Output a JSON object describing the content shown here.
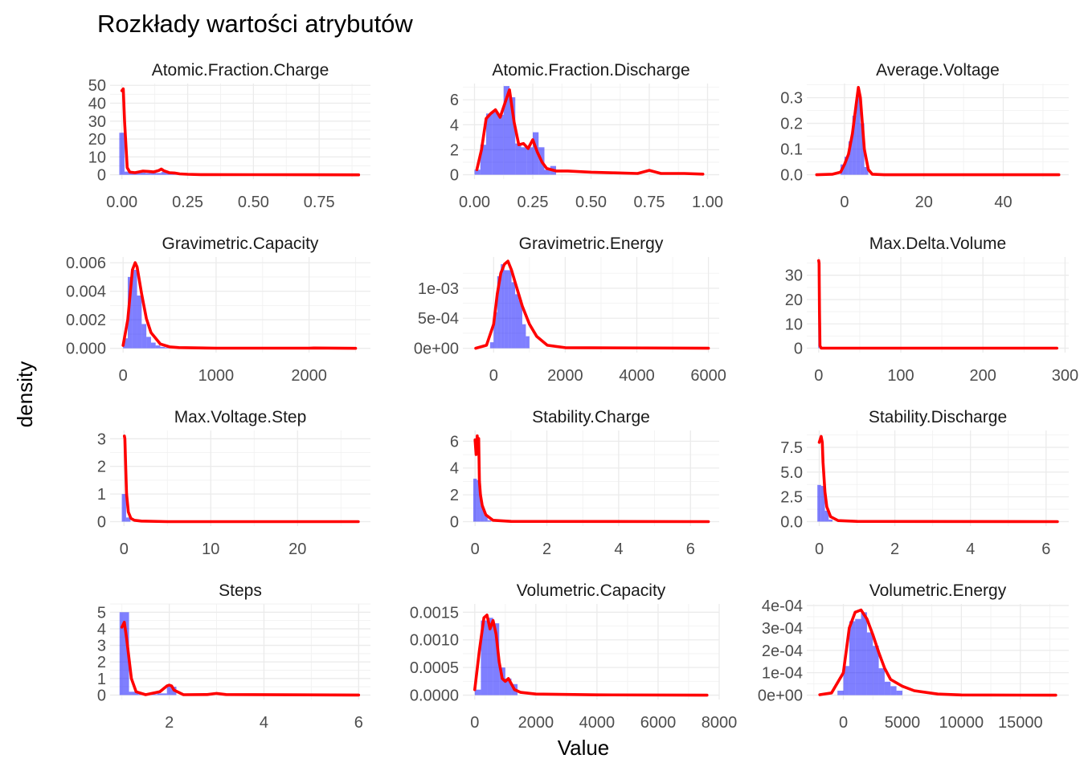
{
  "figure": {
    "title": "Rozkłady wartości atrybutów",
    "xlabel": "Value",
    "ylabel": "density"
  },
  "colors": {
    "histogram": "#0000FF",
    "density": "#FF0000"
  },
  "chart_data": [
    {
      "type": "area",
      "title": "Atomic.Fraction.Charge",
      "xlim": [
        -0.045,
        0.945
      ],
      "ylim": [
        -2.4,
        51
      ],
      "xticks": [
        0,
        0.25,
        0.5,
        0.75
      ],
      "xtick_labels": [
        "0.00",
        "0.25",
        "0.50",
        "0.75"
      ],
      "yticks": [
        0,
        10,
        20,
        30,
        40,
        50
      ],
      "ytick_labels": [
        "0",
        "10",
        "20",
        "30",
        "40",
        "50"
      ],
      "hist": {
        "edges": [
          -0.01,
          0.01,
          0.03,
          0.05,
          0.07,
          0.09,
          0.11,
          0.13,
          0.15,
          0.17,
          0.19,
          0.21,
          0.23,
          0.25
        ],
        "values": [
          23.5,
          1.8,
          1.2,
          1.0,
          1.2,
          1.0,
          1.5,
          1.0,
          1.6,
          0.8,
          0.5,
          0.3,
          0.1
        ]
      },
      "density": {
        "x": [
          0,
          0.005,
          0.01,
          0.02,
          0.03,
          0.05,
          0.08,
          0.1,
          0.12,
          0.14,
          0.15,
          0.16,
          0.18,
          0.2,
          0.22,
          0.25,
          0.3,
          0.5,
          0.7,
          0.9
        ],
        "y": [
          47,
          48,
          30,
          4,
          1.5,
          1.2,
          2.1,
          1.9,
          1.6,
          2.4,
          3.2,
          2.2,
          1.2,
          1.0,
          0.5,
          0.3,
          0.1,
          0.05,
          0.02,
          0
        ]
      }
    },
    {
      "type": "area",
      "title": "Atomic.Fraction.Discharge",
      "xlim": [
        -0.05,
        1.05
      ],
      "ylim": [
        -0.35,
        7.3
      ],
      "xticks": [
        0,
        0.25,
        0.5,
        0.75,
        1.0
      ],
      "xtick_labels": [
        "0.00",
        "0.25",
        "0.50",
        "0.75",
        "1.00"
      ],
      "yticks": [
        0,
        2,
        4,
        6
      ],
      "ytick_labels": [
        "0",
        "2",
        "4",
        "6"
      ],
      "hist": {
        "edges": [
          0,
          0.025,
          0.05,
          0.075,
          0.1,
          0.125,
          0.15,
          0.175,
          0.2,
          0.225,
          0.25,
          0.275,
          0.3,
          0.325,
          0.35
        ],
        "values": [
          0.4,
          2.4,
          4.9,
          5.0,
          4.8,
          7.1,
          6.2,
          2.5,
          2.2,
          2.2,
          3.4,
          2.2,
          0.4,
          0.7
        ]
      },
      "density": {
        "x": [
          0.01,
          0.03,
          0.05,
          0.07,
          0.09,
          0.11,
          0.13,
          0.15,
          0.17,
          0.19,
          0.21,
          0.23,
          0.25,
          0.27,
          0.29,
          0.31,
          0.35,
          0.4,
          0.5,
          0.6,
          0.7,
          0.75,
          0.8,
          0.9,
          0.98
        ],
        "y": [
          0.4,
          2.0,
          4.5,
          4.9,
          5.2,
          4.6,
          5.7,
          6.8,
          4.2,
          2.4,
          2.5,
          2.1,
          2.8,
          1.8,
          1.0,
          0.5,
          0.3,
          0.3,
          0.2,
          0.15,
          0.1,
          0.35,
          0.1,
          0.1,
          0.05
        ]
      }
    },
    {
      "type": "area",
      "title": "Average.Voltage",
      "xlim": [
        -9.5,
        56.5
      ],
      "ylim": [
        -0.017,
        0.355
      ],
      "xticks": [
        0,
        20,
        40
      ],
      "xtick_labels": [
        "0",
        "20",
        "40"
      ],
      "yticks": [
        0,
        0.1,
        0.2,
        0.3
      ],
      "ytick_labels": [
        "0.0",
        "0.1",
        "0.2",
        "0.3"
      ],
      "hist": {
        "edges": [
          -1,
          0,
          1,
          2,
          3,
          4,
          5,
          6
        ],
        "values": [
          0.04,
          0.07,
          0.13,
          0.23,
          0.32,
          0.2,
          0.03
        ]
      },
      "density": {
        "x": [
          -7,
          -3,
          -1,
          0,
          1,
          2,
          3,
          3.5,
          4,
          5,
          6,
          7,
          10,
          20,
          54
        ],
        "y": [
          0,
          0.002,
          0.01,
          0.04,
          0.08,
          0.16,
          0.28,
          0.34,
          0.3,
          0.1,
          0.02,
          0.002,
          0,
          0,
          0
        ]
      }
    },
    {
      "type": "area",
      "title": "Gravimetric.Capacity",
      "xlim": [
        -140,
        2660
      ],
      "ylim": [
        -0.0003,
        0.0064
      ],
      "xticks": [
        0,
        1000,
        2000
      ],
      "xtick_labels": [
        "0",
        "1000",
        "2000"
      ],
      "yticks": [
        0,
        0.002,
        0.004,
        0.006
      ],
      "ytick_labels": [
        "0.000",
        "0.002",
        "0.004",
        "0.006"
      ],
      "hist": {
        "edges": [
          0,
          50,
          100,
          150,
          200,
          250,
          300,
          350,
          400,
          450,
          500
        ],
        "values": [
          0.0007,
          0.005,
          0.0055,
          0.0037,
          0.0017,
          0.0008,
          0.0004,
          0.0002,
          0.0001,
          5e-05
        ]
      },
      "density": {
        "x": [
          0,
          50,
          100,
          130,
          150,
          200,
          250,
          300,
          400,
          500,
          600,
          1000,
          2000,
          2050,
          2500
        ],
        "y": [
          0.0002,
          0.002,
          0.0055,
          0.006,
          0.0057,
          0.0038,
          0.0021,
          0.0011,
          0.0003,
          0.0001,
          5e-05,
          1e-05,
          1e-05,
          2e-05,
          0
        ]
      }
    },
    {
      "type": "area",
      "title": "Gravimetric.Energy",
      "xlim": [
        -860,
        6300
      ],
      "ylim": [
        -7.2e-05,
        0.00152
      ],
      "xticks": [
        0,
        2000,
        4000,
        6000
      ],
      "xtick_labels": [
        "0",
        "2000",
        "4000",
        "6000"
      ],
      "yticks": [
        0,
        0.0005,
        0.001
      ],
      "ytick_labels": [
        "0e+00",
        "5e-04",
        "1e-03"
      ],
      "hist": {
        "edges": [
          -100,
          0,
          100,
          200,
          300,
          400,
          500,
          600,
          700,
          800,
          900,
          1000
        ],
        "values": [
          0.0001,
          0.0006,
          0.0012,
          0.0014,
          0.0013,
          0.0013,
          0.0011,
          0.0009,
          0.0008,
          0.0004,
          0.0002
        ]
      },
      "density": {
        "x": [
          -500,
          -200,
          0,
          100,
          200,
          300,
          400,
          500,
          600,
          700,
          800,
          1000,
          1200,
          1500,
          2000,
          6000
        ],
        "y": [
          0,
          5e-05,
          0.0004,
          0.0009,
          0.00125,
          0.0014,
          0.00145,
          0.0013,
          0.0011,
          0.0009,
          0.0007,
          0.0004,
          0.0002,
          5e-05,
          1e-05,
          0
        ]
      }
    },
    {
      "type": "area",
      "title": "Max.Delta.Volume",
      "xlim": [
        -14.5,
        304.5
      ],
      "ylim": [
        -1.8,
        37.5
      ],
      "xticks": [
        0,
        100,
        200,
        300
      ],
      "xtick_labels": [
        "0",
        "100",
        "200",
        "300"
      ],
      "yticks": [
        0,
        10,
        20,
        30
      ],
      "ytick_labels": [
        "0",
        "10",
        "20",
        "30"
      ],
      "hist": {
        "edges": [
          -0.5,
          0.5,
          1.5
        ],
        "values": [
          35,
          0.2
        ]
      },
      "density": {
        "x": [
          0,
          0.5,
          1,
          1.5,
          3,
          290
        ],
        "y": [
          36,
          35,
          15,
          1,
          0,
          0
        ]
      }
    },
    {
      "type": "area",
      "title": "Max.Voltage.Step",
      "xlim": [
        -1.6,
        28.4
      ],
      "ylim": [
        -0.16,
        3.3
      ],
      "xticks": [
        0,
        10,
        20
      ],
      "xtick_labels": [
        "0",
        "10",
        "20"
      ],
      "yticks": [
        0,
        1,
        2,
        3
      ],
      "ytick_labels": [
        "0",
        "1",
        "2",
        "3"
      ],
      "hist": {
        "edges": [
          -0.25,
          0.25,
          0.75
        ],
        "values": [
          1.0,
          0.15
        ]
      },
      "density": {
        "x": [
          0.05,
          0.1,
          0.2,
          0.3,
          0.5,
          0.8,
          1.2,
          2,
          5,
          27
        ],
        "y": [
          3.1,
          3.0,
          2.0,
          1.0,
          0.35,
          0.12,
          0.05,
          0.02,
          0,
          0
        ]
      }
    },
    {
      "type": "area",
      "title": "Stability.Charge",
      "xlim": [
        -0.34,
        6.8
      ],
      "ylim": [
        -0.33,
        6.8
      ],
      "xticks": [
        0,
        2,
        4,
        6
      ],
      "xtick_labels": [
        "0",
        "2",
        "4",
        "6"
      ],
      "yticks": [
        0,
        2,
        4,
        6
      ],
      "ytick_labels": [
        "0",
        "2",
        "4",
        "6"
      ],
      "hist": {
        "edges": [
          -0.05,
          0.05,
          0.15,
          0.25,
          0.35,
          0.45
        ],
        "values": [
          3.2,
          3.1,
          1.2,
          0.5,
          0.1
        ]
      },
      "density": {
        "x": [
          0,
          0.03,
          0.06,
          0.08,
          0.1,
          0.12,
          0.15,
          0.2,
          0.3,
          0.5,
          1,
          6.5
        ],
        "y": [
          6.1,
          5.0,
          6.4,
          5.2,
          6.2,
          3.0,
          2.0,
          1.2,
          0.5,
          0.1,
          0.02,
          0
        ]
      }
    },
    {
      "type": "area",
      "title": "Stability.Discharge",
      "xlim": [
        -0.33,
        6.6
      ],
      "ylim": [
        -0.45,
        9.2
      ],
      "xticks": [
        0,
        2,
        4,
        6
      ],
      "xtick_labels": [
        "0",
        "2",
        "4",
        "6"
      ],
      "yticks": [
        0,
        2.5,
        5,
        7.5
      ],
      "ytick_labels": [
        "0.0",
        "2.5",
        "5.0",
        "7.5"
      ],
      "hist": {
        "edges": [
          -0.05,
          0.05,
          0.15,
          0.25,
          0.35
        ],
        "values": [
          3.7,
          3.6,
          1.1,
          0.2
        ]
      },
      "density": {
        "x": [
          0,
          0.05,
          0.08,
          0.1,
          0.15,
          0.2,
          0.3,
          0.5,
          1,
          6.3
        ],
        "y": [
          8.0,
          8.6,
          8.0,
          6.0,
          3.0,
          1.5,
          0.5,
          0.1,
          0.02,
          0
        ]
      }
    },
    {
      "type": "area",
      "title": "Steps",
      "xlim": [
        0.75,
        6.25
      ],
      "ylim": [
        -0.27,
        5.5
      ],
      "xticks": [
        2,
        4,
        6
      ],
      "xtick_labels": [
        "2",
        "4",
        "6"
      ],
      "yticks": [
        0,
        1,
        2,
        3,
        4,
        5
      ],
      "ytick_labels": [
        "0",
        "1",
        "2",
        "3",
        "4",
        "5"
      ],
      "hist": {
        "edges": [
          0.95,
          1.15,
          1.35,
          1.55,
          1.75,
          1.95,
          2.15
        ],
        "values": [
          5.0,
          0.2,
          0.05,
          0.05,
          0.1,
          0.5
        ]
      },
      "density": {
        "x": [
          1.0,
          1.05,
          1.1,
          1.2,
          1.3,
          1.5,
          1.8,
          1.95,
          2.0,
          2.05,
          2.1,
          2.3,
          2.8,
          3.0,
          3.2,
          6.0
        ],
        "y": [
          4.1,
          4.4,
          3.4,
          1.0,
          0.2,
          0.02,
          0.2,
          0.55,
          0.6,
          0.55,
          0.3,
          0.02,
          0.03,
          0.1,
          0.03,
          0
        ]
      }
    },
    {
      "type": "area",
      "title": "Volumetric.Capacity",
      "xlim": [
        -390,
        8000
      ],
      "ylim": [
        -7.9e-05,
        0.00165
      ],
      "xticks": [
        0,
        2000,
        4000,
        6000,
        8000
      ],
      "xtick_labels": [
        "0",
        "2000",
        "4000",
        "6000",
        "8000"
      ],
      "yticks": [
        0,
        0.0005,
        0.001,
        0.0015
      ],
      "ytick_labels": [
        "0.0000",
        "0.0005",
        "0.0010",
        "0.0015"
      ],
      "hist": {
        "edges": [
          0,
          200,
          400,
          600,
          800,
          1000,
          1200,
          1400
        ],
        "values": [
          0.0001,
          0.00135,
          0.0014,
          0.0013,
          0.0005,
          0.0003,
          0.0002
        ]
      },
      "density": {
        "x": [
          0,
          150,
          300,
          400,
          500,
          600,
          700,
          800,
          900,
          1000,
          1100,
          1200,
          1300,
          1500,
          2000,
          4000,
          7600
        ],
        "y": [
          0.0001,
          0.0008,
          0.0014,
          0.00145,
          0.0012,
          0.00135,
          0.0011,
          0.0006,
          0.0003,
          0.00025,
          0.0003,
          0.0002,
          0.0001,
          5e-05,
          2e-05,
          5e-06,
          0
        ]
      }
    },
    {
      "type": "area",
      "title": "Volumetric.Energy",
      "xlim": [
        -3100,
        19100
      ],
      "ylim": [
        -1.95e-05,
        0.000407
      ],
      "xticks": [
        0,
        5000,
        10000,
        15000
      ],
      "xtick_labels": [
        "0",
        "5000",
        "10000",
        "15000"
      ],
      "yticks": [
        0,
        0.0001,
        0.0002,
        0.0003,
        0.0004
      ],
      "ytick_labels": [
        "0e+00",
        "1e-04",
        "2e-04",
        "3e-04",
        "4e-04"
      ],
      "hist": {
        "edges": [
          -500,
          0,
          500,
          1000,
          1500,
          2000,
          2500,
          3000,
          3500,
          4000,
          4500,
          5000
        ],
        "values": [
          2e-05,
          0.00013,
          0.00033,
          0.00034,
          0.00037,
          0.00028,
          0.00022,
          0.00012,
          6e-05,
          4e-05,
          2e-05
        ]
      },
      "density": {
        "x": [
          -2000,
          -1000,
          0,
          500,
          1000,
          1500,
          2000,
          2500,
          3000,
          3500,
          4000,
          5000,
          6000,
          8000,
          10000,
          18000
        ],
        "y": [
          2e-06,
          1e-05,
          0.0001,
          0.0003,
          0.00037,
          0.00038,
          0.00034,
          0.00027,
          0.00019,
          0.00012,
          7e-05,
          4e-05,
          2e-05,
          5e-06,
          1e-06,
          0
        ]
      }
    }
  ]
}
